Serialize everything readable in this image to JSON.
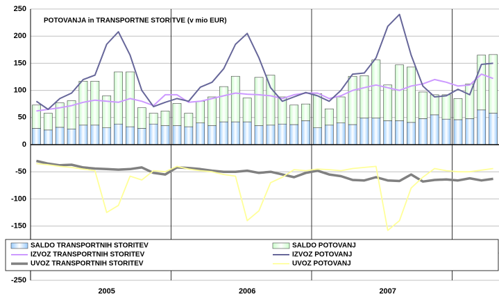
{
  "chart_data": {
    "type": "bar",
    "stacked": true,
    "title": "POTOVANJA in TRANSPORTNE STORITVE (v mio EUR)",
    "categories": [
      null,
      null,
      null,
      null,
      null,
      null,
      "2005",
      null,
      null,
      null,
      null,
      null,
      null,
      null,
      null,
      null,
      null,
      null,
      "2006",
      null,
      null,
      null,
      null,
      null,
      null,
      null,
      null,
      null,
      null,
      null,
      "2007",
      null,
      null,
      null,
      null,
      null,
      null,
      null,
      null,
      null
    ],
    "ylim": [
      -250,
      250
    ],
    "yticks": [
      -250,
      -200,
      -150,
      -100,
      -50,
      0,
      50,
      100,
      150,
      200,
      250
    ],
    "grid": true,
    "series": [
      {
        "name": "SALDO TRANSPORTNIH STORITEV",
        "type": "bar",
        "color": "#99ccff",
        "values": [
          30,
          27,
          32,
          29,
          36,
          36,
          31,
          38,
          33,
          30,
          38,
          35,
          35,
          33,
          40,
          35,
          42,
          42,
          42,
          35,
          36,
          38,
          37,
          44,
          31,
          36,
          40,
          37,
          49,
          49,
          44,
          44,
          41,
          48,
          55,
          47,
          46,
          48,
          64,
          58
        ]
      },
      {
        "name": "SALDO POTOVANJ",
        "type": "bar",
        "color": "#ccffcc",
        "values": [
          43,
          31,
          45,
          52,
          81,
          81,
          59,
          96,
          101,
          38,
          20,
          27,
          41,
          25,
          40,
          53,
          65,
          84,
          44,
          89,
          92,
          50,
          36,
          31,
          63,
          30,
          48,
          89,
          78,
          107,
          66,
          103,
          102,
          49,
          37,
          45,
          39,
          64,
          101,
          108
        ]
      },
      {
        "name": "IZVOZ TRANSPORTNIH STORITEV",
        "type": "line",
        "color": "#cc99ff",
        "values": [
          62,
          65,
          68,
          72,
          78,
          82,
          80,
          78,
          85,
          80,
          72,
          92,
          92,
          78,
          80,
          85,
          90,
          95,
          93,
          92,
          90,
          85,
          92,
          95,
          95,
          85,
          90,
          100,
          105,
          110,
          105,
          100,
          108,
          112,
          120,
          115,
          108,
          110,
          130,
          122
        ]
      },
      {
        "name": "IZVOZ POTOVANJ",
        "type": "line",
        "color": "#666699",
        "values": [
          80,
          65,
          85,
          95,
          120,
          128,
          185,
          208,
          165,
          100,
          70,
          78,
          85,
          80,
          106,
          115,
          140,
          185,
          205,
          160,
          105,
          80,
          88,
          96,
          90,
          80,
          100,
          130,
          132,
          160,
          218,
          240,
          165,
          108,
          88,
          90,
          102,
          92,
          148,
          150
        ]
      },
      {
        "name": "UVOZ TRANSPORTNIH STORITEV",
        "type": "line",
        "color": "#808080",
        "values": [
          -30,
          -35,
          -38,
          -37,
          -42,
          -44,
          -45,
          -46,
          -45,
          -42,
          -52,
          -55,
          -42,
          -43,
          -45,
          -48,
          -50,
          -50,
          -48,
          -52,
          -50,
          -55,
          -60,
          -52,
          -48,
          -55,
          -58,
          -65,
          -66,
          -60,
          -66,
          -67,
          -55,
          -68,
          -65,
          -64,
          -66,
          -62,
          -66,
          -63
        ]
      },
      {
        "name": "UVOZ POTOVANJ",
        "type": "line",
        "color": "#ffff99",
        "values": [
          -35,
          -37,
          -40,
          -42,
          -45,
          -48,
          -125,
          -112,
          -58,
          -65,
          -48,
          -50,
          -40,
          -45,
          -48,
          -50,
          -55,
          -58,
          -140,
          -122,
          -70,
          -60,
          -46,
          -48,
          -45,
          -46,
          -48,
          -44,
          -42,
          -40,
          -158,
          -140,
          -80,
          -60,
          -44,
          -48,
          -50,
          -50,
          -47,
          -44
        ]
      }
    ]
  }
}
